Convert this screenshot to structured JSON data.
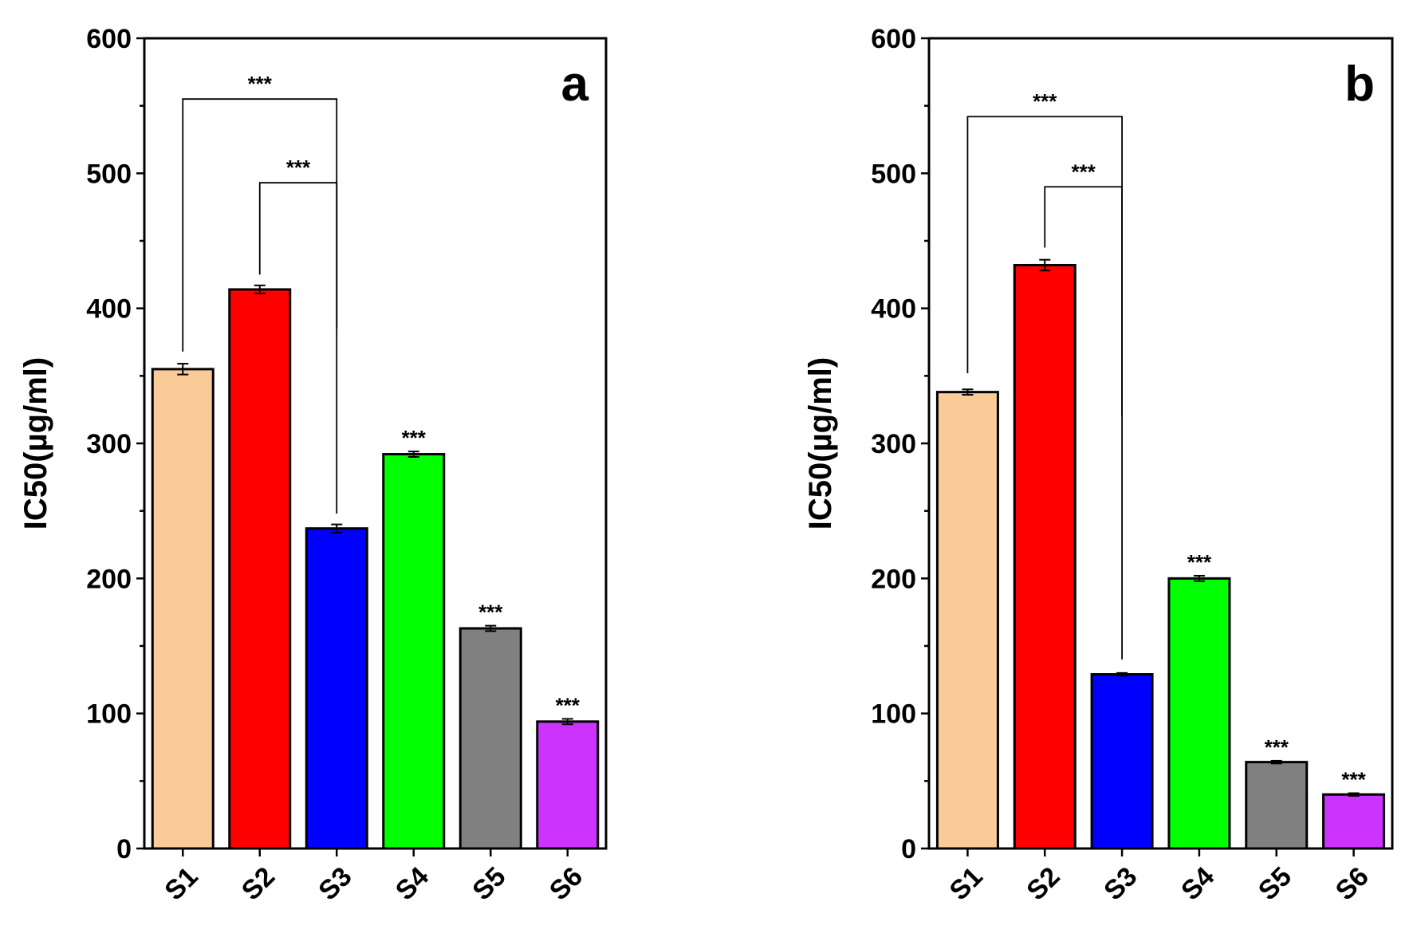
{
  "chart_data": [
    {
      "type": "bar",
      "panel_label": "a",
      "ylabel": "IC50(µg/ml)",
      "ylim": [
        0,
        600
      ],
      "yticks": [
        "0",
        "100",
        "200",
        "300",
        "400",
        "500",
        "600"
      ],
      "categories": [
        "S1",
        "S2",
        "S3",
        "S4",
        "S5",
        "S6"
      ],
      "values": [
        355,
        414,
        237,
        292,
        163,
        94
      ],
      "errors": [
        4,
        3,
        3,
        2,
        2,
        2
      ],
      "colors": [
        "#FACB98",
        "#FF0000",
        "#0000FF",
        "#00FF00",
        "#808080",
        "#CC33FF"
      ],
      "bar_annotations": [
        "",
        "",
        "",
        "***",
        "***",
        "***"
      ],
      "brackets": [
        {
          "from": "S1",
          "to": "S3",
          "level": 555,
          "from_end": 368,
          "to_end": 385,
          "label": "***"
        },
        {
          "from": "S2",
          "to": "S3",
          "level": 493,
          "from_end": 425,
          "to_end": 248,
          "label": "***"
        }
      ]
    },
    {
      "type": "bar",
      "panel_label": "b",
      "ylabel": "IC50(µg/ml)",
      "ylim": [
        0,
        600
      ],
      "yticks": [
        "0",
        "100",
        "200",
        "300",
        "400",
        "500",
        "600"
      ],
      "categories": [
        "S1",
        "S2",
        "S3",
        "S4",
        "S5",
        "S6"
      ],
      "values": [
        338,
        432,
        129,
        200,
        64,
        40
      ],
      "errors": [
        2,
        4,
        1,
        2,
        1,
        1
      ],
      "colors": [
        "#FACB98",
        "#FF0000",
        "#0000FF",
        "#00FF00",
        "#808080",
        "#CC33FF"
      ],
      "bar_annotations": [
        "",
        "",
        "",
        "***",
        "***",
        "***"
      ],
      "brackets": [
        {
          "from": "S1",
          "to": "S3",
          "level": 542,
          "from_end": 352,
          "to_end": 320,
          "label": "***"
        },
        {
          "from": "S2",
          "to": "S3",
          "level": 490,
          "from_end": 445,
          "to_end": 140,
          "label": "***"
        }
      ]
    }
  ]
}
